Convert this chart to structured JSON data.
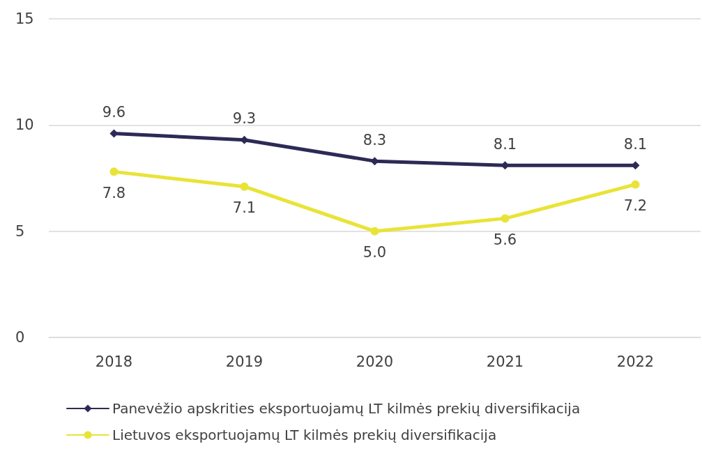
{
  "chart_data": {
    "type": "line",
    "categories": [
      "2018",
      "2019",
      "2020",
      "2021",
      "2022"
    ],
    "series": [
      {
        "name": "Panevėžio apskrities eksportuojamų LT kilmės prekių diversifikacija",
        "color": "#2d2a56",
        "values": [
          9.6,
          9.3,
          8.3,
          8.1,
          8.1
        ],
        "value_labels": [
          "9.6",
          "9.3",
          "8.3",
          "8.1",
          "8.1"
        ],
        "marker": "diamond"
      },
      {
        "name": "Lietuvos eksportuojamų LT kilmės prekių diversifikacija",
        "color": "#e9e337",
        "values": [
          7.8,
          7.1,
          5.0,
          5.6,
          7.2
        ],
        "value_labels": [
          "7.8",
          "7.1",
          "5.0",
          "5.6",
          "7.2"
        ],
        "marker": "circle"
      }
    ],
    "ylim": [
      0,
      15
    ],
    "yticks": [
      0,
      5,
      10,
      15
    ],
    "grid": "y",
    "legend": "bottom",
    "line_style": "solid"
  }
}
